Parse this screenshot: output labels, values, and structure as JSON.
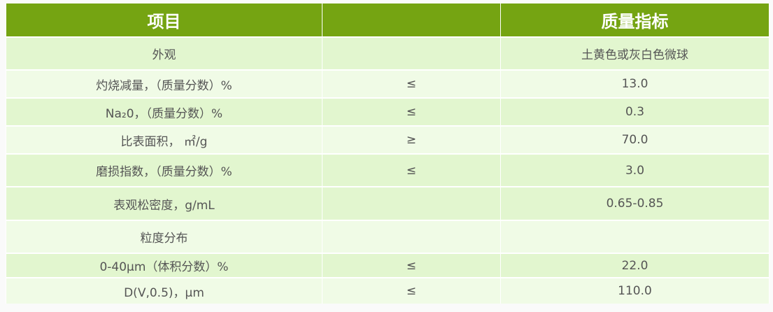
{
  "header": {
    "item": "项目",
    "blank": "",
    "spec": "质量指标"
  },
  "colors": {
    "header": "#75a412",
    "row_dark": "#e2f6cf",
    "row_light": "#f0fbe6"
  },
  "rows": [
    {
      "item": "外观",
      "op": "",
      "value": "土黄色或灰白色微球"
    },
    {
      "item": "灼烧减量，（质量分数）%",
      "op": "≤",
      "value": "13.0"
    },
    {
      "item": "Na₂0，（质量分数）%",
      "op": "≤",
      "value": "0.3"
    },
    {
      "item": "比表面积， ㎡/g",
      "op": "≥",
      "value": "70.0"
    },
    {
      "item": "磨损指数，（质量分数）%",
      "op": "≤",
      "value": "3.0"
    },
    {
      "item": "表观松密度，g/mL",
      "op": "",
      "value": "0.65-0.85"
    },
    {
      "item": "粒度分布",
      "op": "",
      "value": ""
    },
    {
      "item": "0-40μm（体积分数）%",
      "op": "≤",
      "value": "22.0"
    },
    {
      "item": "D(V,0.5)，μm",
      "op": "≤",
      "value": "110.0"
    }
  ]
}
